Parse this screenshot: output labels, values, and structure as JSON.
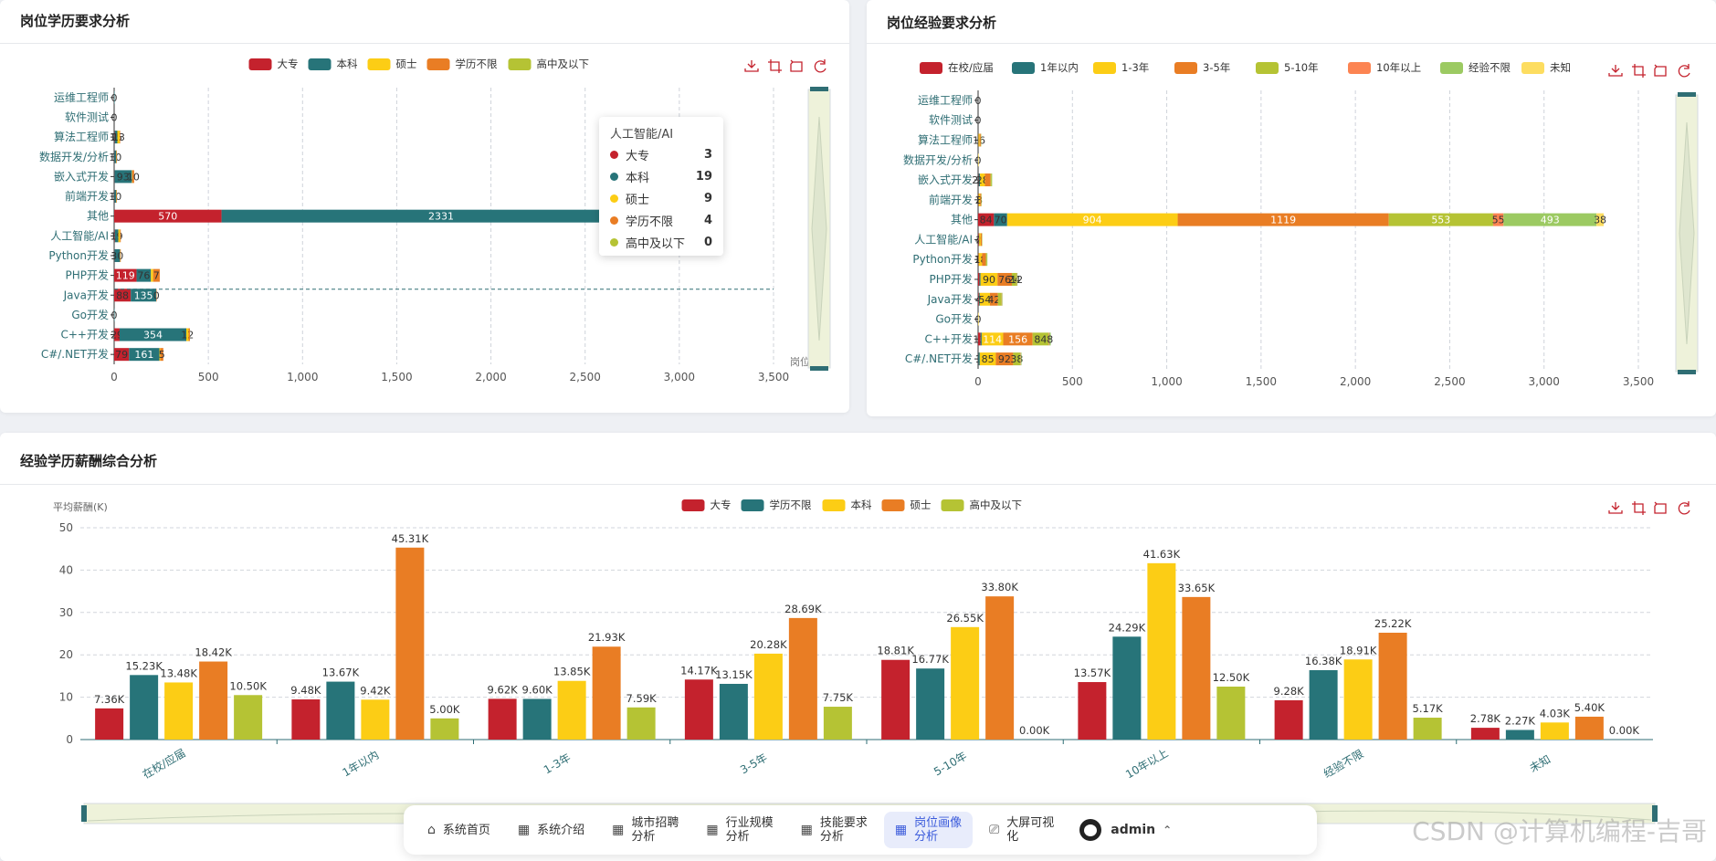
{
  "colors": {
    "palette1": [
      "#c4222d",
      "#277479",
      "#fccd15",
      "#e97d24",
      "#b5c334"
    ],
    "palette2": [
      "#c4222d",
      "#277479",
      "#fccd15",
      "#e97d24",
      "#b5c334",
      "#fc8452",
      "#9cca62",
      "#fddd60"
    ],
    "palette3": [
      "#c4222d",
      "#277479",
      "#fccd15",
      "#e97d24",
      "#b5c334"
    ],
    "slider_fill": "#eef2da",
    "slider_handle": "#2f6e74",
    "axis_label": "#2f6e74",
    "active_nav": "#3b5bdb"
  },
  "cards": {
    "edu": {
      "title": "岗位学历要求分析"
    },
    "exp": {
      "title": "岗位经验要求分析"
    },
    "salary": {
      "title": "经验学历薪酬综合分析"
    }
  },
  "tooltip": {
    "title": "人工智能/AI",
    "rows": [
      {
        "name": "大专",
        "value": "3"
      },
      {
        "name": "本科",
        "value": "19"
      },
      {
        "name": "硕士",
        "value": "9"
      },
      {
        "name": "学历不限",
        "value": "4"
      },
      {
        "name": "高中及以下",
        "value": "0"
      }
    ]
  },
  "nav": {
    "items": [
      {
        "label": "系统首页",
        "icon": "home-icon",
        "glyph": "⌂"
      },
      {
        "label": "系统介绍",
        "icon": "grid-icon",
        "glyph": "▦"
      },
      {
        "label": "城市招聘分析",
        "icon": "grid-icon",
        "glyph": "▦"
      },
      {
        "label": "行业规模分析",
        "icon": "grid-icon",
        "glyph": "▦"
      },
      {
        "label": "技能要求分析",
        "icon": "grid-icon",
        "glyph": "▦"
      },
      {
        "label": "岗位画像分析",
        "icon": "grid-icon",
        "glyph": "▦"
      },
      {
        "label": "大屏可视化",
        "icon": "monitor-icon",
        "glyph": "⎚"
      }
    ],
    "active_index": 5,
    "user": "admin",
    "user_chevron": "⌃"
  },
  "watermark": "CSDN @计算机编程-吉哥",
  "chart_data": [
    {
      "id": "edu",
      "type": "bar",
      "orientation": "horizontal",
      "stacked": true,
      "title": "岗位学历要求分析",
      "categories": [
        "运维工程师",
        "软件测试",
        "算法工程师",
        "数据开发/分析",
        "嵌入式开发",
        "前端开发",
        "其他",
        "人工智能/AI",
        "Python开发",
        "PHP开发",
        "Java开发",
        "Go开发",
        "C++开发",
        "C#/.NET开发"
      ],
      "series": [
        {
          "name": "大专",
          "values": [
            0,
            0,
            2,
            1,
            1,
            1,
            570,
            3,
            1,
            119,
            88,
            0,
            29,
            79
          ]
        },
        {
          "name": "本科",
          "values": [
            1,
            0,
            15,
            10,
            93,
            10,
            2331,
            19,
            30,
            76,
            135,
            2,
            354,
            161
          ]
        },
        {
          "name": "硕士",
          "values": [
            0,
            0,
            13,
            1,
            2,
            1,
            30,
            9,
            1,
            12,
            0,
            0,
            12,
            5
          ]
        },
        {
          "name": "学历不限",
          "values": [
            0,
            0,
            2,
            2,
            10,
            2,
            86,
            4,
            3,
            35,
            2,
            0,
            7,
            16
          ]
        },
        {
          "name": "高中及以下",
          "values": [
            0,
            0,
            0,
            0,
            0,
            0,
            1,
            0,
            0,
            0,
            0,
            0,
            0,
            0
          ]
        }
      ],
      "segment_labels": [
        [
          "0",
          "",
          "",
          "",
          ""
        ],
        [
          "0",
          "",
          "",
          "",
          ""
        ],
        [
          "2",
          "15",
          "13",
          "",
          ""
        ],
        [
          "1",
          "10",
          "",
          "",
          ""
        ],
        [
          "",
          "93",
          "",
          "10",
          ""
        ],
        [
          "1",
          "10",
          "",
          "",
          ""
        ],
        [
          "570",
          "2331",
          "",
          "2",
          "1"
        ],
        [
          "3",
          "19",
          "",
          "",
          ""
        ],
        [
          "1",
          "30",
          "",
          "",
          ""
        ],
        [
          "119",
          "76",
          "",
          "7",
          ""
        ],
        [
          "88",
          "135",
          "",
          "0",
          ""
        ],
        [
          "0",
          "",
          "",
          "",
          ""
        ],
        [
          "29",
          "354",
          "12",
          "",
          ""
        ],
        [
          "79",
          "161",
          "",
          "5",
          ""
        ]
      ],
      "xlim": [
        0,
        3500
      ],
      "xticks": [
        "0",
        "500",
        "1,000",
        "1,500",
        "2,000",
        "2,500",
        "3,000",
        "3,500"
      ],
      "xlabel": "岗位数量",
      "legend": "top-center",
      "highlight_category": "人工智能/AI"
    },
    {
      "id": "exp",
      "type": "bar",
      "orientation": "horizontal",
      "stacked": true,
      "title": "岗位经验要求分析",
      "categories": [
        "运维工程师",
        "软件测试",
        "算法工程师",
        "数据开发/分析",
        "嵌入式开发",
        "前端开发",
        "其他",
        "人工智能/AI",
        "Python开发",
        "PHP开发",
        "Java开发",
        "Go开发",
        "C++开发",
        "C#/.NET开发"
      ],
      "series": [
        {
          "name": "在校/应届",
          "values": [
            0,
            0,
            1,
            0,
            2,
            2,
            84,
            4,
            2,
            7,
            4,
            0,
            13,
            1
          ]
        },
        {
          "name": "1年以内",
          "values": [
            0,
            0,
            1,
            0,
            8,
            1,
            70,
            2,
            1,
            6,
            5,
            0,
            6,
            8
          ]
        },
        {
          "name": "1-3年",
          "values": [
            0,
            0,
            6,
            1,
            26,
            8,
            904,
            8,
            18,
            90,
            54,
            1,
            114,
            85
          ]
        },
        {
          "name": "3-5年",
          "values": [
            0,
            0,
            6,
            0,
            30,
            5,
            1119,
            6,
            20,
            76,
            42,
            0,
            156,
            92
          ]
        },
        {
          "name": "5-10年",
          "values": [
            0,
            0,
            2,
            0,
            6,
            2,
            553,
            2,
            6,
            24,
            20,
            0,
            84,
            38
          ]
        },
        {
          "name": "10年以上",
          "values": [
            0,
            0,
            0,
            0,
            0,
            0,
            55,
            0,
            0,
            2,
            2,
            0,
            4,
            2
          ]
        },
        {
          "name": "经验不限",
          "values": [
            0,
            0,
            0,
            0,
            2,
            0,
            493,
            0,
            1,
            4,
            2,
            0,
            8,
            4
          ]
        },
        {
          "name": "未知",
          "values": [
            0,
            0,
            0,
            0,
            0,
            0,
            38,
            0,
            0,
            0,
            0,
            0,
            0,
            0
          ]
        }
      ],
      "segment_labels": [
        [
          "0",
          "",
          "",
          "",
          "",
          "",
          "",
          ""
        ],
        [
          "0",
          "",
          "",
          "",
          "",
          "",
          "",
          ""
        ],
        [
          "",
          "",
          "16",
          "",
          "",
          "",
          "",
          ""
        ],
        [
          "0",
          "",
          "",
          "",
          "",
          "",
          "",
          ""
        ],
        [
          "28",
          "",
          "28",
          "",
          "",
          "",
          "",
          ""
        ],
        [
          "2",
          "",
          "8",
          "",
          "",
          "",
          "",
          ""
        ],
        [
          "84",
          "70",
          "904",
          "1119",
          "553",
          "55",
          "493",
          "38"
        ],
        [
          "4",
          "2",
          "",
          "",
          "",
          "",
          "",
          ""
        ],
        [
          "2",
          "",
          "18",
          "",
          "",
          "",
          "",
          ""
        ],
        [
          "",
          "",
          "90",
          "76",
          "24",
          "12",
          "",
          ""
        ],
        [
          "4",
          "",
          "54",
          "42",
          "",
          "",
          "",
          ""
        ],
        [
          "0",
          "",
          "",
          "",
          "",
          "",
          "",
          ""
        ],
        [
          "13",
          "",
          "114",
          "156",
          "84",
          "",
          "8",
          ""
        ],
        [
          "1",
          "",
          "85",
          "92",
          "38",
          "",
          "",
          ""
        ]
      ],
      "xlim": [
        0,
        3500
      ],
      "xticks": [
        "0",
        "500",
        "1,000",
        "1,500",
        "2,000",
        "2,500",
        "3,000",
        "3,500"
      ],
      "legend": "top-center"
    },
    {
      "id": "salary",
      "type": "bar",
      "orientation": "vertical",
      "title": "经验学历薪酬综合分析",
      "categories": [
        "在校/应届",
        "1年以内",
        "1-3年",
        "3-5年",
        "5-10年",
        "10年以上",
        "经验不限",
        "未知"
      ],
      "series": [
        {
          "name": "大专",
          "values": [
            7.36,
            9.48,
            9.62,
            14.17,
            18.81,
            13.57,
            9.28,
            2.78
          ]
        },
        {
          "name": "学历不限",
          "values": [
            15.23,
            13.67,
            9.6,
            13.15,
            16.77,
            24.29,
            16.38,
            2.27
          ]
        },
        {
          "name": "本科",
          "values": [
            13.48,
            9.42,
            13.85,
            20.28,
            26.55,
            41.63,
            18.91,
            4.03
          ]
        },
        {
          "name": "硕士",
          "values": [
            18.42,
            45.31,
            21.93,
            28.69,
            33.8,
            33.65,
            25.22,
            5.4
          ]
        },
        {
          "name": "高中及以下",
          "values": [
            10.5,
            5.0,
            7.59,
            7.75,
            0.0,
            12.5,
            5.17,
            0.0
          ]
        }
      ],
      "data_labels": [
        [
          "7.36K",
          "9.48K",
          "9.62K",
          "14.17K",
          "18.81K",
          "13.57K",
          "9.28K",
          "2.78K"
        ],
        [
          "15.23K",
          "13.67K",
          "9.60K",
          "13.15K",
          "16.77K",
          "24.29K",
          "16.38K",
          "2.27K"
        ],
        [
          "13.48K",
          "9.42K",
          "13.85K",
          "20.28K",
          "26.55K",
          "41.63K",
          "18.91K",
          "4.03K"
        ],
        [
          "18.42K",
          "45.31K",
          "21.93K",
          "28.69K",
          "33.80K",
          "33.65K",
          "25.22K",
          "5.40K"
        ],
        [
          "10.50K",
          "5.00K",
          "7.59K",
          "7.75K",
          "0.00K",
          "12.50K",
          "5.17K",
          "0.00K"
        ]
      ],
      "ylim": [
        0,
        50
      ],
      "yticks": [
        "0",
        "10",
        "20",
        "30",
        "40",
        "50"
      ],
      "ylabel": "平均薪酬(K)",
      "legend": "top-center"
    }
  ]
}
